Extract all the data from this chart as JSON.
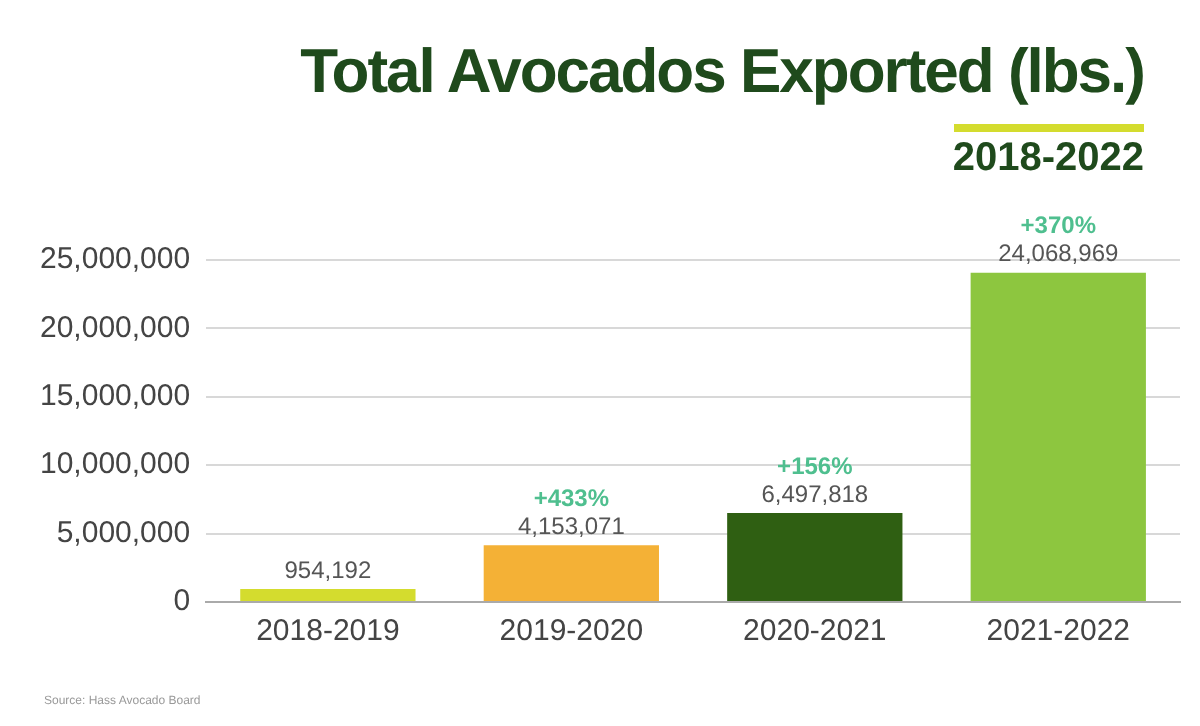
{
  "chart_data": {
    "type": "bar",
    "title": "Total Avocados Exported (lbs.)",
    "subtitle": "2018-2022",
    "categories": [
      "2018-2019",
      "2019-2020",
      "2020-2021",
      "2021-2022"
    ],
    "values": [
      954192,
      4153071,
      6497818,
      24068969
    ],
    "colors": [
      "#d4dc2e",
      "#f4b136",
      "#2f5f12",
      "#8dc63f"
    ],
    "value_labels": [
      "954,192",
      "4,153,071",
      "6,497,818",
      "24,068,969"
    ],
    "ylim": [
      0,
      25000000
    ],
    "yticks": [
      {
        "value": 0,
        "label": "0"
      },
      {
        "value": 5000000,
        "label": "5,000,000"
      },
      {
        "value": 10000000,
        "label": "10,000,000"
      },
      {
        "value": 15000000,
        "label": "15,000,000"
      },
      {
        "value": 20000000,
        "label": "20,000,000"
      },
      {
        "value": 25000000,
        "label": "25,000,000"
      }
    ],
    "grid": "y",
    "legend": false,
    "annotations": [
      {
        "text": "+433%",
        "x": "2019-2020",
        "y": 4153071
      },
      {
        "text": "+156%",
        "x": "2020-2021",
        "y": 6497818
      },
      {
        "text": "+370%",
        "x": "2021-2022",
        "y": 24068969
      },
      "Source: Hass Avocado Board"
    ]
  }
}
